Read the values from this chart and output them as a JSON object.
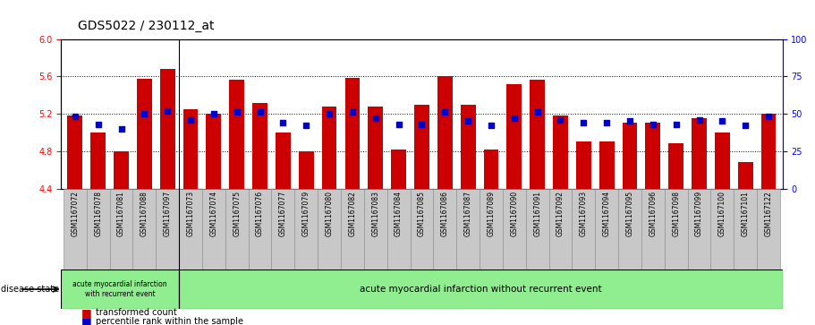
{
  "title": "GDS5022 / 230112_at",
  "samples": [
    "GSM1167072",
    "GSM1167078",
    "GSM1167081",
    "GSM1167088",
    "GSM1167097",
    "GSM1167073",
    "GSM1167074",
    "GSM1167075",
    "GSM1167076",
    "GSM1167077",
    "GSM1167079",
    "GSM1167080",
    "GSM1167082",
    "GSM1167083",
    "GSM1167084",
    "GSM1167085",
    "GSM1167086",
    "GSM1167087",
    "GSM1167089",
    "GSM1167090",
    "GSM1167091",
    "GSM1167092",
    "GSM1167093",
    "GSM1167094",
    "GSM1167095",
    "GSM1167096",
    "GSM1167098",
    "GSM1167099",
    "GSM1167100",
    "GSM1167101",
    "GSM1167122"
  ],
  "bar_values": [
    5.18,
    5.0,
    4.8,
    5.57,
    5.68,
    5.25,
    5.2,
    5.56,
    5.32,
    5.0,
    4.8,
    5.28,
    5.58,
    5.28,
    4.82,
    5.3,
    5.6,
    5.3,
    4.82,
    5.52,
    5.56,
    5.18,
    4.9,
    4.9,
    5.1,
    5.1,
    4.88,
    5.15,
    5.0,
    4.68,
    5.2
  ],
  "percentile_values": [
    48,
    43,
    40,
    50,
    52,
    46,
    50,
    51,
    51,
    44,
    42,
    50,
    51,
    47,
    43,
    43,
    51,
    45,
    42,
    47,
    51,
    46,
    44,
    44,
    45,
    43,
    43,
    46,
    45,
    42,
    48
  ],
  "bar_color": "#cc0000",
  "dot_color": "#0000cc",
  "ylim_left": [
    4.4,
    6.0
  ],
  "ylim_right": [
    0,
    100
  ],
  "yticks_left": [
    4.4,
    4.8,
    5.2,
    5.6,
    6.0
  ],
  "yticks_right": [
    0,
    25,
    50,
    75,
    100
  ],
  "baseline": 4.4,
  "group1_count": 5,
  "group2_count": 26,
  "group1_label": "acute myocardial infarction\nwith recurrent event",
  "group2_label": "acute myocardial infarction without recurrent event",
  "group_color": "#90ee90",
  "legend_bar_label": "transformed count",
  "legend_dot_label": "percentile rank within the sample",
  "disease_state_label": "disease state",
  "title_fontsize": 10,
  "tick_fontsize": 6,
  "label_fontsize": 7,
  "bar_width": 0.65,
  "plot_bg": "#ffffff",
  "tick_area_bg": "#d0d0d0"
}
